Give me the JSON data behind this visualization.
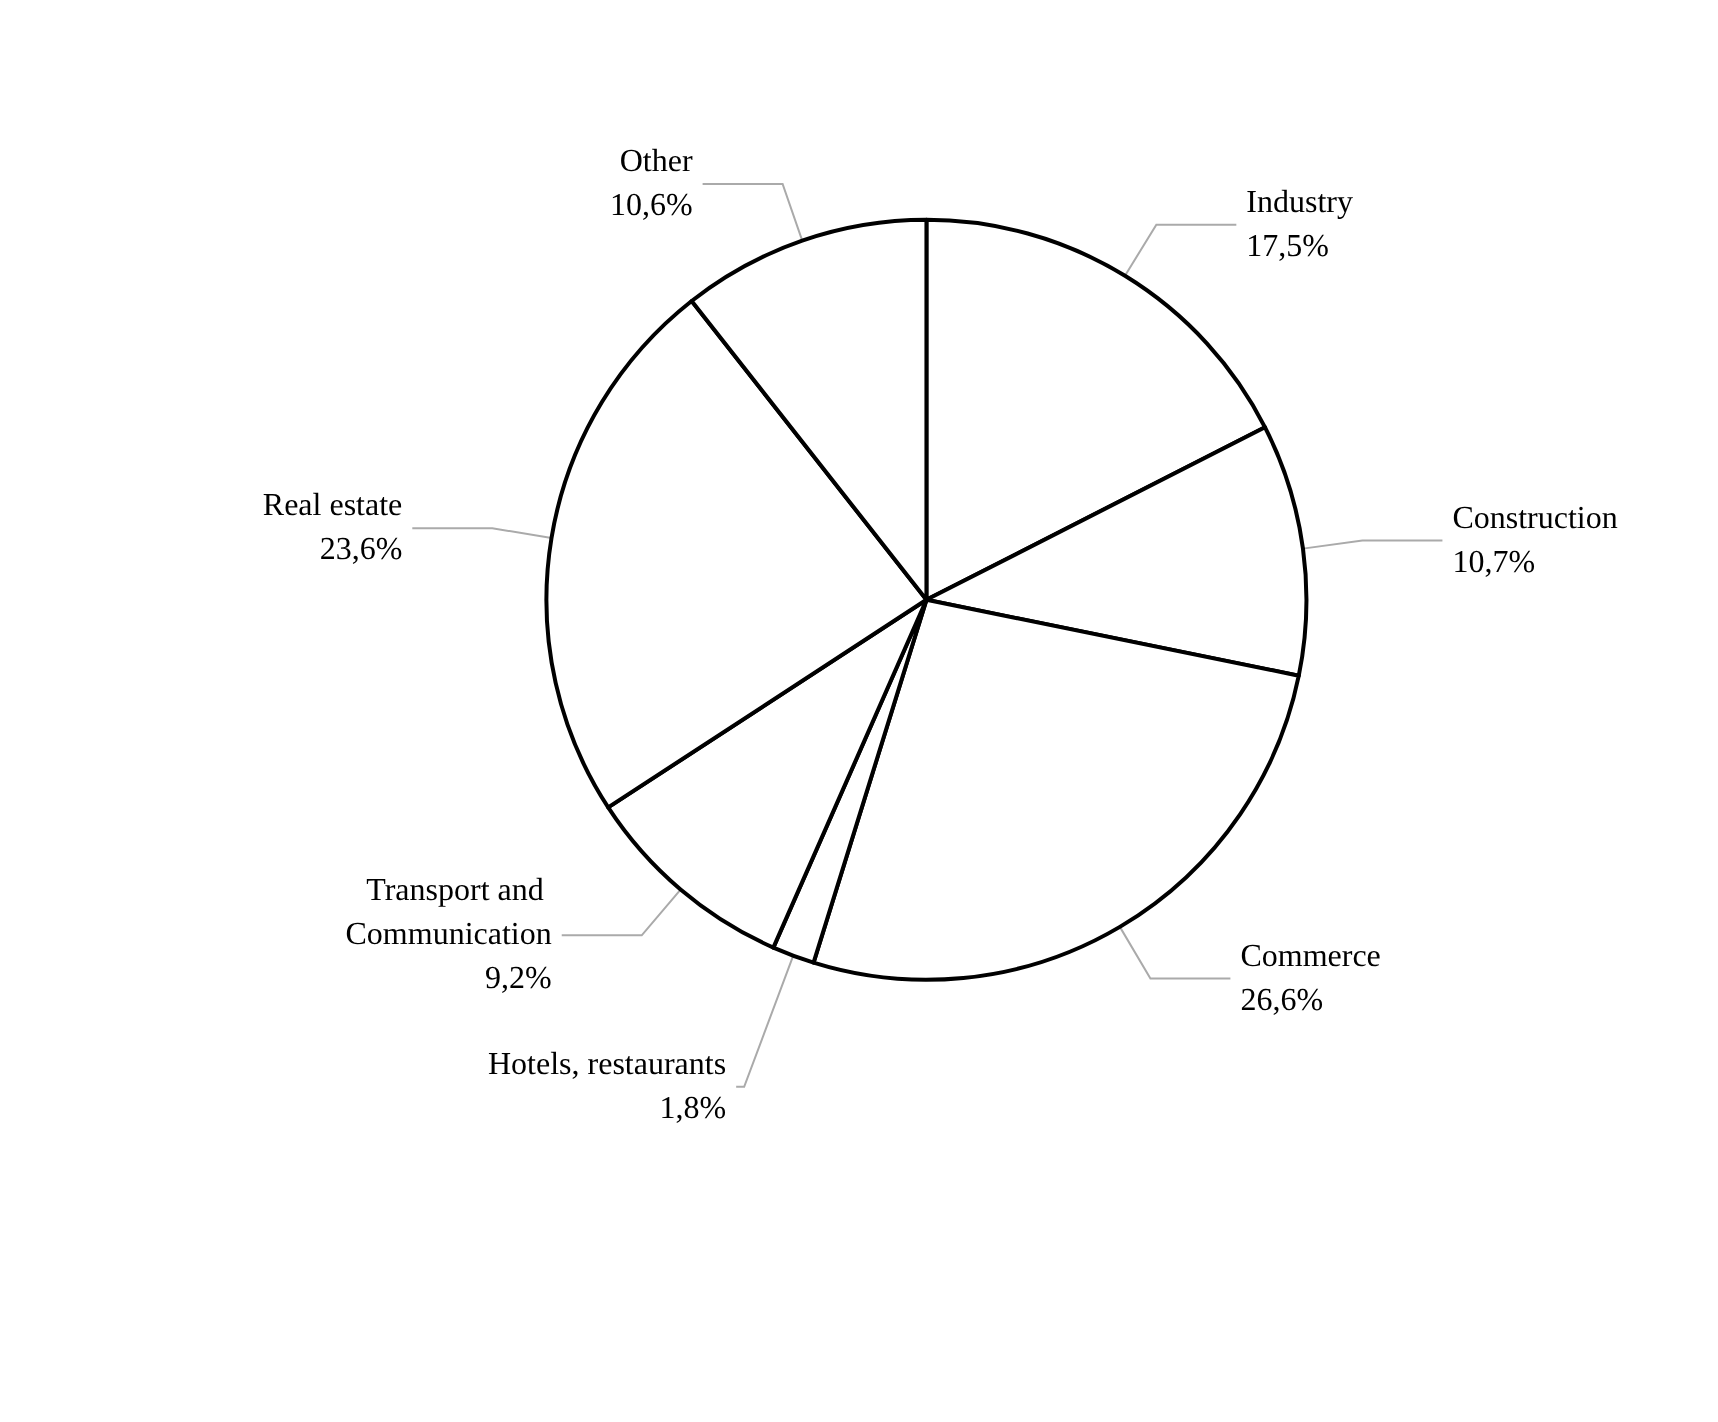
{
  "chart_data": {
    "type": "pie",
    "categories": [
      "Industry",
      "Construction",
      "Commerce",
      "Hotels, restaurants",
      "Transport and Communication",
      "Real estate",
      "Other"
    ],
    "values": [
      17.5,
      10.7,
      26.6,
      1.8,
      9.2,
      23.6,
      10.6
    ],
    "value_labels": [
      "17,5%",
      "10,7%",
      "26,6%",
      "1,8%",
      "9,2%",
      "23,6%",
      "10,6%"
    ],
    "colors": [
      "#ffffff",
      "#ffffff",
      "#ffffff",
      "#ffffff",
      "#ffffff",
      "#ffffff",
      "#ffffff"
    ],
    "legend": false
  }
}
